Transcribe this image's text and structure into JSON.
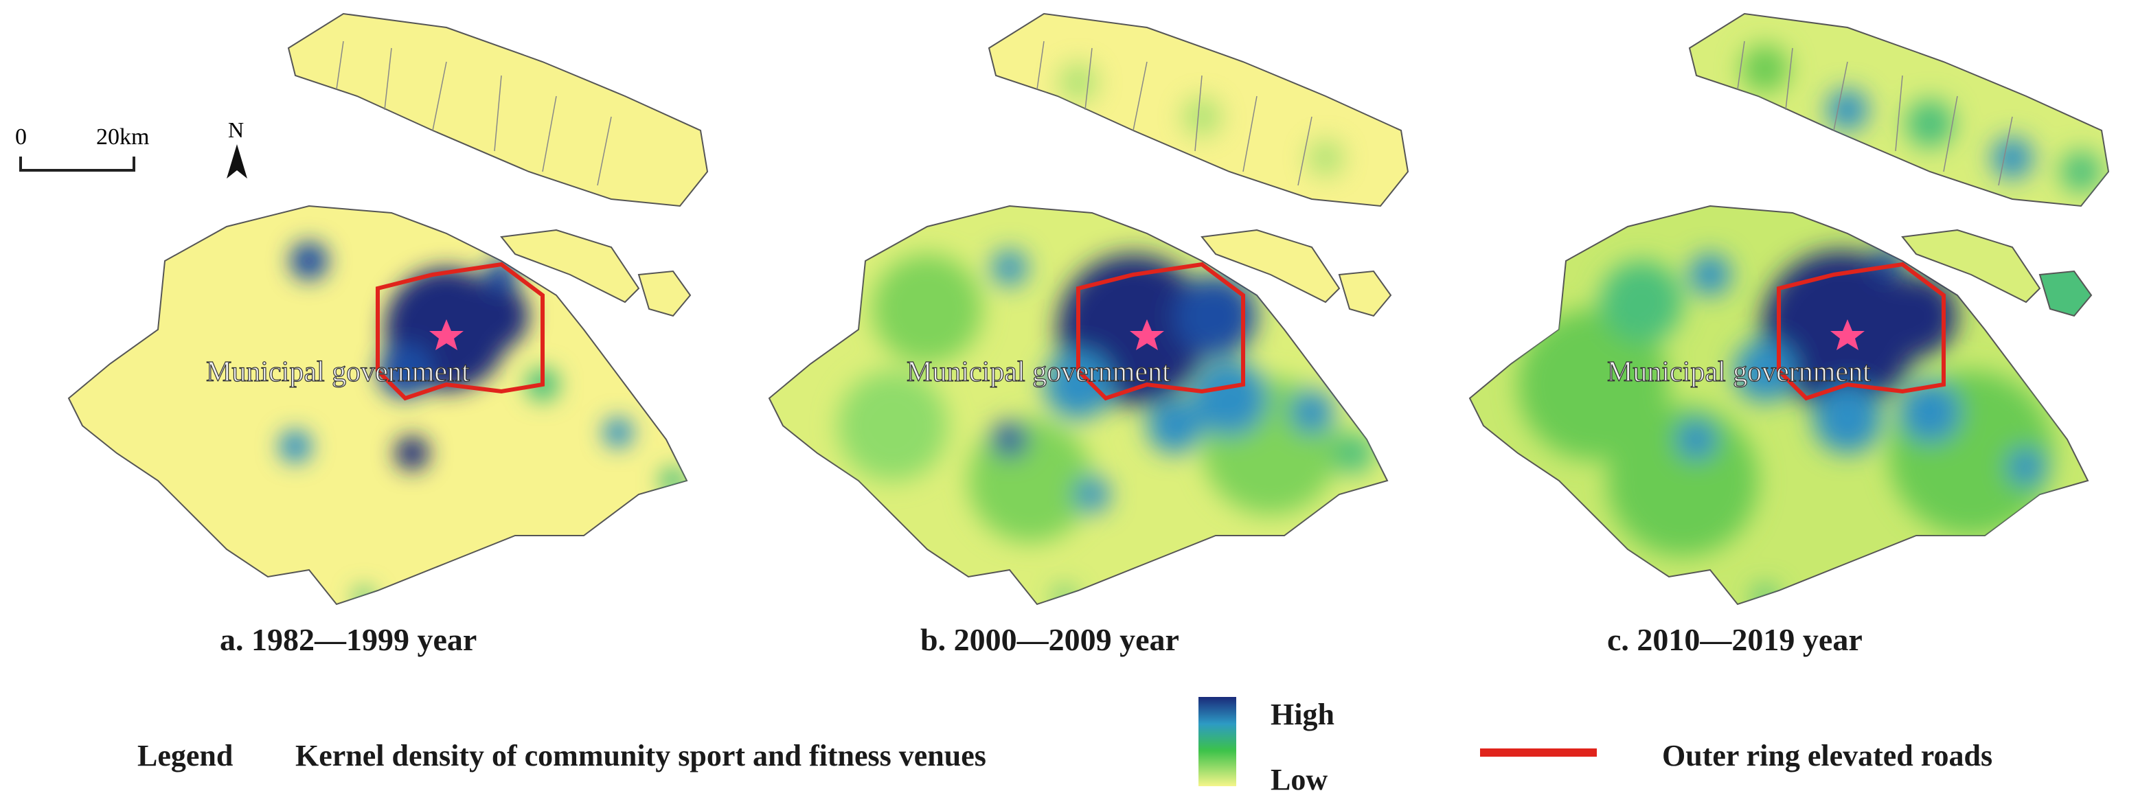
{
  "map": {
    "scale_bar": {
      "start_label": "0",
      "end_label": "20km"
    },
    "north_arrow": {
      "label": "N"
    },
    "panels": [
      {
        "caption": "a. 1982—1999 year",
        "landmark_label": "Municipal government",
        "density_level": "low",
        "hotspot_colors": [
          "#1a2a7a",
          "#1f4da3",
          "#2d8fc4"
        ]
      },
      {
        "caption": "b. 2000—2009 year",
        "landmark_label": "Municipal government",
        "density_level": "medium",
        "hotspot_colors": [
          "#1a2a7a",
          "#2d8fc4",
          "#4cc07a"
        ]
      },
      {
        "caption": "c. 2010—2019 year",
        "landmark_label": "Municipal government",
        "density_level": "high",
        "hotspot_colors": [
          "#1a2a7a",
          "#2d8fc4",
          "#4cc07a"
        ]
      }
    ]
  },
  "legend": {
    "title": "Legend",
    "density_label": "Kernel density of community sport and fitness venues",
    "high_label": "High",
    "low_label": "Low",
    "road_label": "Outer ring elevated roads",
    "colors": {
      "high": "#1a2a7a",
      "mid": "#2d9ac4",
      "green": "#3cc24a",
      "low": "#f5f58a",
      "road": "#e0241c",
      "land": "#f7f38e",
      "star": "#ff4d8d"
    }
  }
}
